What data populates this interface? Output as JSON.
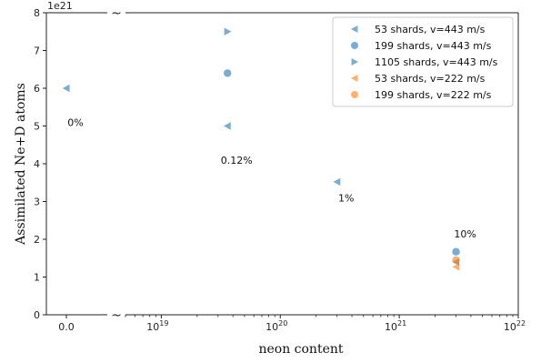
{
  "chart_data": {
    "type": "scatter",
    "xlabel": "neon content",
    "ylabel": "Assimilated Ne+D atoms",
    "y_multiplier": "1e21",
    "ylim": [
      0,
      8
    ],
    "y_ticks": [
      "0",
      "1",
      "2",
      "3",
      "4",
      "5",
      "6",
      "7",
      "8"
    ],
    "x_axis": {
      "broken": true,
      "linear_part": {
        "ticks": [
          "0.0"
        ],
        "value": 0
      },
      "log_part": {
        "scale": "log",
        "xlim": [
          5e+18,
          1e+22
        ],
        "ticks": [
          {
            "value": 1e+19,
            "base": "10",
            "exp": "19"
          },
          {
            "value": 1e+20,
            "base": "10",
            "exp": "20"
          },
          {
            "value": 1e+21,
            "base": "10",
            "exp": "21"
          },
          {
            "value": 1e+22,
            "base": "10",
            "exp": "22"
          }
        ]
      },
      "break_mark": "~"
    },
    "series": [
      {
        "name": "53 shards, v=443 m/s",
        "marker": "triangle-left",
        "color": "#1f77b4",
        "points": [
          {
            "x": 0,
            "y": 6.0
          },
          {
            "x": 3.6e+19,
            "y": 5.0
          },
          {
            "x": 3e+20,
            "y": 3.52
          },
          {
            "x": 3e+21,
            "y": 1.4
          }
        ]
      },
      {
        "name": "199 shards, v=443 m/s",
        "marker": "circle",
        "color": "#1f77b4",
        "points": [
          {
            "x": 3.6e+19,
            "y": 6.4
          },
          {
            "x": 3e+21,
            "y": 1.67
          }
        ]
      },
      {
        "name": "1105 shards, v=443 m/s",
        "marker": "triangle-right",
        "color": "#1f77b4",
        "points": [
          {
            "x": 3.6e+19,
            "y": 7.5
          }
        ]
      },
      {
        "name": "53 shards, v=222 m/s",
        "marker": "triangle-left",
        "color": "#ff7f0e",
        "points": [
          {
            "x": 3e+21,
            "y": 1.27
          }
        ]
      },
      {
        "name": "199 shards, v=222 m/s",
        "marker": "circle",
        "color": "#ff7f0e",
        "points": [
          {
            "x": 3e+21,
            "y": 1.45
          }
        ]
      }
    ],
    "annotations": [
      {
        "text": "0%",
        "x": 0,
        "y": 5.0
      },
      {
        "text": "0.12%",
        "x": 3.6e+19,
        "y": 4.0
      },
      {
        "text": "1%",
        "x": 3e+20,
        "y": 3.0
      },
      {
        "text": "10%",
        "x": 3e+21,
        "y": 2.05
      }
    ],
    "legend_position": "top-right",
    "marker_alpha": 0.6,
    "grid": false
  }
}
